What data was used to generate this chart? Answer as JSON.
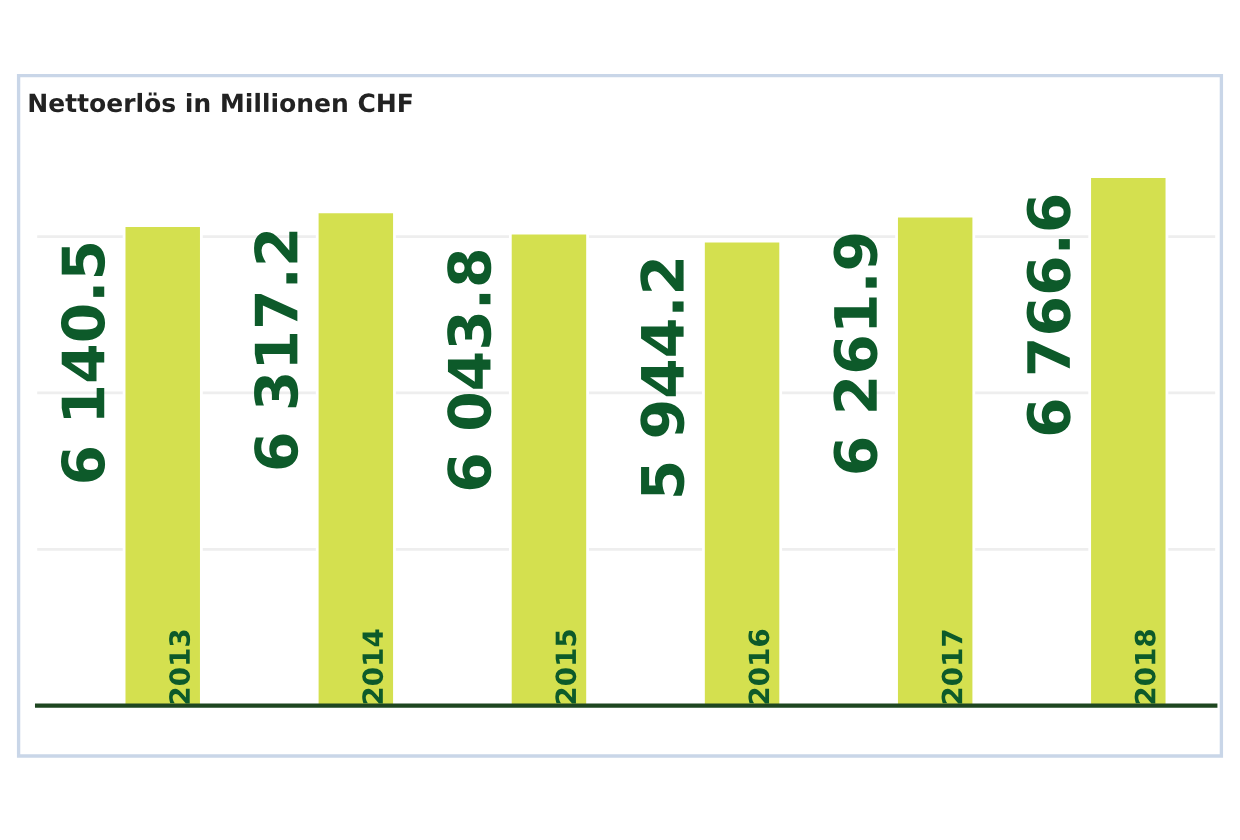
{
  "chart_data": {
    "type": "bar",
    "title": "Nettoerlös in Millionen CHF",
    "categories": [
      "2013",
      "2014",
      "2015",
      "2016",
      "2017",
      "2018"
    ],
    "values": [
      6140.5,
      6317.2,
      6043.8,
      5944.2,
      6261.9,
      6766.6
    ],
    "value_labels": [
      "6 140.5",
      "6 317.2",
      "6 043.8",
      "5 944.2",
      "6 261.9",
      "6 766.6"
    ],
    "color": "#d4e04f",
    "yticks": [
      {
        "value": 0,
        "label": null
      },
      {
        "value": 2000,
        "label": null
      },
      {
        "value": 4000,
        "label": null
      },
      {
        "value": 6000,
        "label": null
      }
    ],
    "grid": "y"
  }
}
